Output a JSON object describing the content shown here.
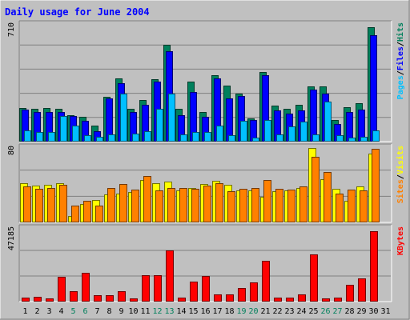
{
  "chart_data": {
    "type": "bar",
    "title": "Daily usage for June 2004",
    "days": [
      "1",
      "2",
      "3",
      "4",
      "5",
      "6",
      "7",
      "8",
      "9",
      "10",
      "11",
      "12",
      "13",
      "14",
      "15",
      "16",
      "17",
      "18",
      "19",
      "20",
      "21",
      "22",
      "23",
      "24",
      "25",
      "26",
      "27",
      "28",
      "29",
      "30",
      "31"
    ],
    "weekend_days": [
      "5",
      "6",
      "12",
      "13",
      "19",
      "20",
      "26",
      "27"
    ],
    "colors": {
      "hits": "#00805c",
      "files": "#0000ff",
      "pages": "#00c0ff",
      "visits": "#ffff00",
      "sites": "#ff8000",
      "kbytes": "#ff0000",
      "weekday_label": "#000000",
      "weekend_label": "#00805c",
      "title": "#0000ff"
    },
    "panels": [
      {
        "id": "hits-files-pages",
        "max_label": "710",
        "ymax": 710,
        "legend": [
          {
            "label": "Pages",
            "color": "#00c0ff"
          },
          {
            "label": "/",
            "color": "#000000"
          },
          {
            "label": "Files",
            "color": "#0000ff"
          },
          {
            "label": "/",
            "color": "#000000"
          },
          {
            "label": "Hits",
            "color": "#00805c"
          }
        ],
        "series": [
          {
            "name": "Hits",
            "color": "#00805c",
            "values": [
              205,
              200,
              205,
              200,
              160,
              150,
              95,
              270,
              380,
              200,
              250,
              375,
              585,
              200,
              360,
              180,
              400,
              340,
              290,
              140,
              420,
              215,
              200,
              220,
              335,
              335,
              130,
              210,
              230,
              690,
              0
            ]
          },
          {
            "name": "Files",
            "color": "#0000ff",
            "values": [
              195,
              180,
              180,
              180,
              155,
              125,
              65,
              260,
              355,
              180,
              220,
              360,
              545,
              160,
              300,
              150,
              380,
              260,
              275,
              130,
              400,
              190,
              170,
              190,
              315,
              290,
              105,
              180,
              195,
              640,
              0
            ]
          },
          {
            "name": "Pages",
            "color": "#00c0ff",
            "values": [
              70,
              60,
              60,
              155,
              95,
              40,
              30,
              45,
              290,
              50,
              65,
              200,
              290,
              45,
              60,
              60,
              95,
              40,
              125,
              25,
              130,
              45,
              90,
              120,
              45,
              240,
              40,
              25,
              30,
              70,
              0
            ]
          }
        ]
      },
      {
        "id": "visits-sites",
        "max_label": "80",
        "ymax": 80,
        "legend": [
          {
            "label": "Sites",
            "color": "#ff8000"
          },
          {
            "label": "/",
            "color": "#000000"
          },
          {
            "label": "Visits",
            "color": "#ffff00"
          }
        ],
        "series": [
          {
            "name": "Visits",
            "color": "#ffff00",
            "values": [
              42,
              39,
              40,
              42,
              7,
              20,
              24,
              30,
              31,
              32,
              45,
              42,
              43,
              34,
              37,
              41,
              44,
              40,
              34,
              34,
              27,
              33,
              34,
              37,
              79,
              46,
              36,
              23,
              38,
              73,
              0
            ]
          },
          {
            "name": "Sites",
            "color": "#ff8000",
            "values": [
              38,
              36,
              37,
              40,
              18,
              23,
              18,
              37,
              41,
              35,
              49,
              34,
              37,
              37,
              36,
              39,
              42,
              33,
              36,
              37,
              45,
              36,
              35,
              38,
              70,
              54,
              31,
              35,
              34,
              78,
              0
            ]
          }
        ]
      },
      {
        "id": "kbytes",
        "max_label": "47185",
        "ymax": 47185,
        "legend": [
          {
            "label": "KBytes",
            "color": "#ff0000"
          }
        ],
        "series": [
          {
            "name": "KBytes",
            "color": "#ff0000",
            "values": [
              2650,
              2850,
              2000,
              15800,
              6900,
              18400,
              4000,
              4050,
              6900,
              2000,
              17000,
              16850,
              32700,
              2400,
              12700,
              16400,
              4650,
              4650,
              8800,
              12400,
              26200,
              2550,
              2600,
              4850,
              30200,
              2300,
              2500,
              10900,
              15000,
              45200,
              0
            ]
          }
        ]
      }
    ]
  }
}
